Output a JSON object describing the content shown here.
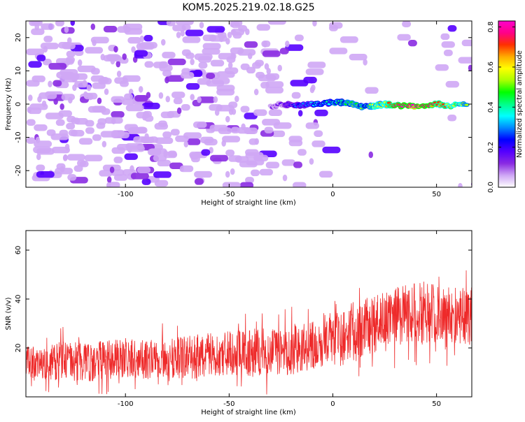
{
  "title": "KOM5.2025.219.02.18.G25",
  "chart_data": [
    {
      "type": "heatmap",
      "xlabel": "Height of straight line (km)",
      "ylabel": "Frequency (Hz)",
      "xlim": [
        -148,
        67
      ],
      "ylim": [
        -25,
        25
      ],
      "xticks": [
        -100,
        -50,
        0,
        50
      ],
      "yticks": [
        -20,
        -10,
        0,
        10,
        20
      ],
      "colorbar": {
        "label": "Normalized spectral amplitude",
        "range": [
          0,
          0.83
        ],
        "ticks": [
          0,
          0.2,
          0.4,
          0.6,
          0.8
        ],
        "tick_labels": [
          "0.0",
          "0.2",
          "0.4",
          "0.6",
          "0.8"
        ],
        "colors": [
          "#ffffff",
          "#cfa7f5",
          "#8a2be2",
          "#5500ff",
          "#0000ff",
          "#0088ff",
          "#00ffff",
          "#00ff88",
          "#00ff00",
          "#aaff00",
          "#ffff00",
          "#ffaa00",
          "#ff3000",
          "#ff0088",
          "#ff00cc"
        ]
      },
      "signal_track": [
        [
          -30,
          -1,
          0.1
        ],
        [
          -25,
          0,
          0.15
        ],
        [
          -18,
          -0.5,
          0.25
        ],
        [
          -12,
          0,
          0.3
        ],
        [
          -6,
          0,
          0.38
        ],
        [
          0,
          0.5,
          0.4
        ],
        [
          5,
          0.5,
          0.45
        ],
        [
          10,
          0,
          0.5
        ],
        [
          15,
          -1,
          0.45
        ],
        [
          20,
          -0.5,
          0.55
        ],
        [
          25,
          0,
          0.58
        ],
        [
          30,
          -0.5,
          0.75
        ],
        [
          40,
          -0.5,
          0.83
        ],
        [
          50,
          0,
          0.7
        ],
        [
          58,
          -0.5,
          0.62
        ],
        [
          65,
          0,
          0.55
        ]
      ]
    },
    {
      "type": "line",
      "xlabel": "Height of straight line (km)",
      "ylabel": "SNR (v/v)",
      "xlim": [
        -148,
        67
      ],
      "ylim": [
        0,
        68
      ],
      "xticks": [
        -100,
        -50,
        0,
        50
      ],
      "yticks": [
        20,
        40,
        60
      ],
      "series": [
        {
          "name": "SNR",
          "color": "#ee2a2a",
          "x": [
            -148,
            -140,
            -130,
            -120,
            -110,
            -100,
            -90,
            -80,
            -70,
            -60,
            -50,
            -40,
            -30,
            -20,
            -10,
            0,
            10,
            20,
            30,
            40,
            50,
            60,
            67
          ],
          "values": [
            14,
            13,
            15,
            14,
            15,
            16,
            15,
            16,
            16,
            17,
            18,
            18,
            18,
            19,
            21,
            24,
            27,
            30,
            33,
            35,
            34,
            33,
            33
          ],
          "spread": [
            7,
            7,
            8,
            8,
            8,
            8,
            8,
            8,
            9,
            9,
            9,
            10,
            10,
            10,
            10,
            11,
            12,
            12,
            12,
            13,
            12,
            12,
            12
          ]
        }
      ]
    }
  ]
}
